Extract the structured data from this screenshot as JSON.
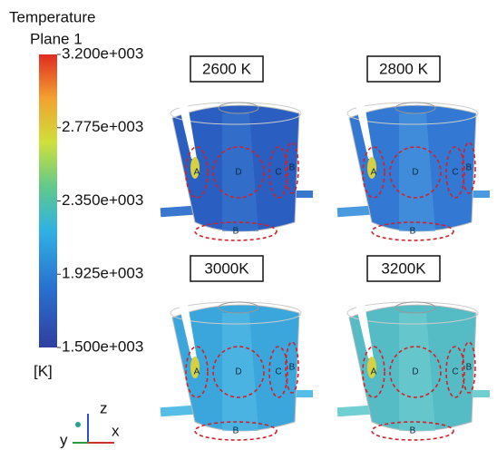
{
  "legend": {
    "title": [
      "Temperature",
      "Plane 1"
    ],
    "range": [
      1500,
      3200
    ],
    "ticks": [
      {
        "value": 3200,
        "label": "3.200e+003"
      },
      {
        "value": 2775,
        "label": "2.775e+003"
      },
      {
        "value": 2350,
        "label": "2.350e+003"
      },
      {
        "value": 1925,
        "label": "1.925e+003"
      },
      {
        "value": 1500,
        "label": "1.500e+003"
      }
    ],
    "unit": "[K]"
  },
  "panels": [
    {
      "label": "2600 K",
      "regions": [
        "A",
        "D",
        "C",
        "B",
        "B"
      ]
    },
    {
      "label": "2800 K",
      "regions": [
        "A",
        "D",
        "C",
        "B",
        "B"
      ]
    },
    {
      "label": "3000K",
      "regions": [
        "A",
        "D",
        "C",
        "B",
        "B"
      ]
    },
    {
      "label": "3200K",
      "regions": [
        "A",
        "D",
        "C",
        "B",
        "B"
      ]
    }
  ],
  "axes": {
    "z": "z",
    "x": "x",
    "y": "y"
  }
}
